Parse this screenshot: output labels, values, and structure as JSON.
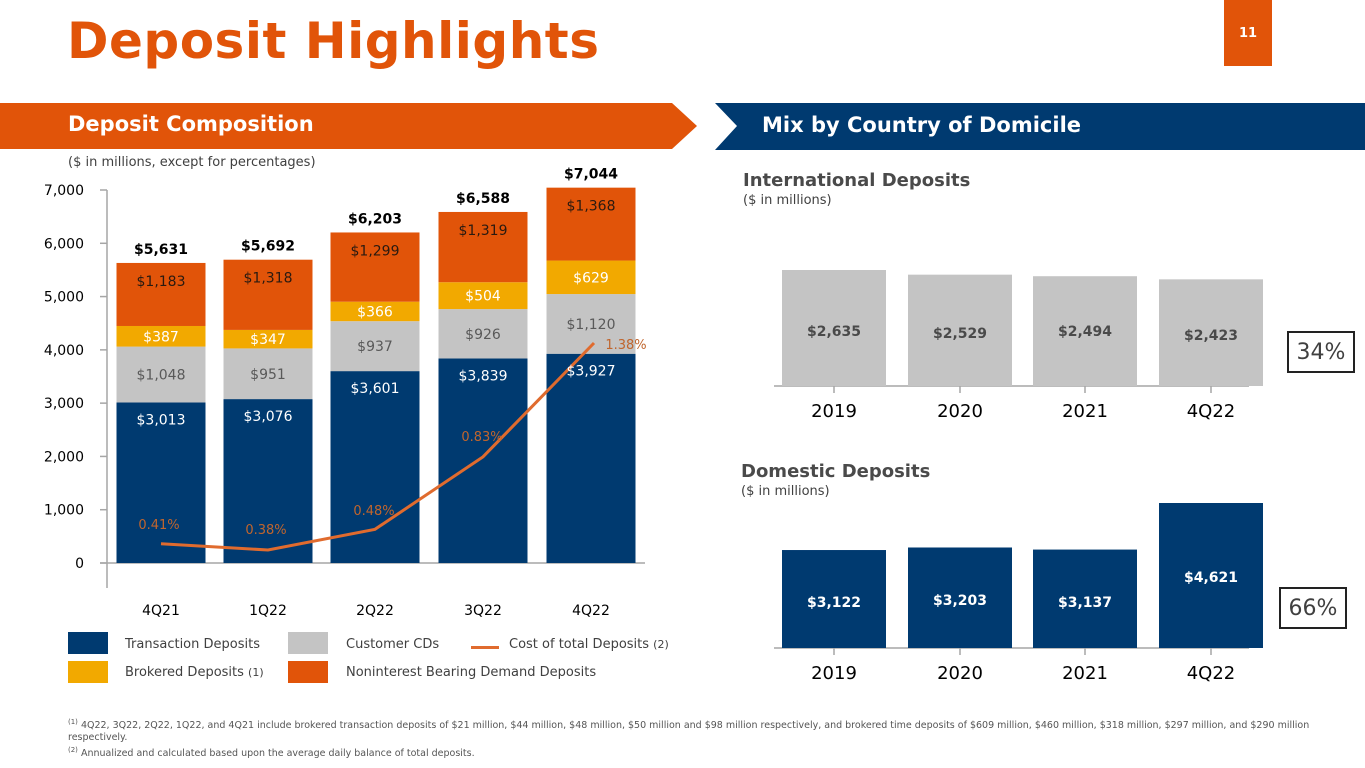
{
  "page": {
    "title": "Deposit Highlights",
    "page_number": "11"
  },
  "left_section": {
    "banner": "Deposit Composition",
    "note": "($ in millions, except for percentages)"
  },
  "right_section": {
    "banner": "Mix by Country of Domicile"
  },
  "legend": {
    "transaction": "Transaction Deposits",
    "customer_cds": "Customer CDs",
    "cost": "Cost of total Deposits",
    "cost_ref": "(2)",
    "brokered": "Brokered Deposits",
    "brokered_ref": "(1)",
    "noninterest": "Noninterest Bearing Demand Deposits"
  },
  "international": {
    "title": "International Deposits",
    "unit": "($ in millions)",
    "share": "34%"
  },
  "domestic": {
    "title": "Domestic Deposits",
    "unit": "($ in millions)",
    "share": "66%"
  },
  "colors": {
    "orange": "#e15409",
    "navy": "#003a70",
    "gray": "#c4c4c4",
    "gold": "#f2a900",
    "line": "#e06b2e"
  },
  "footnotes": {
    "note1_ref": "(1)",
    "note1": " 4Q22, 3Q22, 2Q22, 1Q22, and 4Q21 include brokered transaction deposits of $21 million, $44 million, $48 million, $50 million and $98 million respectively, and brokered time deposits of $609 million,  $460 million, $318 million, $297 million, and $290 million respectively.",
    "note2_ref": "(2)",
    "note2": " Annualized and calculated based upon the average daily balance of total deposits."
  },
  "chart_data": [
    {
      "type": "bar",
      "stacked": true,
      "title": "Deposit Composition",
      "subtitle": "($ in millions, except for percentages)",
      "categories": [
        "4Q21",
        "1Q22",
        "2Q22",
        "3Q22",
        "4Q22"
      ],
      "ylim": [
        0,
        7000
      ],
      "yticks": [
        0,
        1000,
        2000,
        3000,
        4000,
        5000,
        6000,
        7000
      ],
      "ytick_labels": [
        "0",
        "1,000",
        "2,000",
        "3,000",
        "4,000",
        "5,000",
        "6,000",
        "7,000"
      ],
      "series": [
        {
          "name": "Transaction Deposits",
          "color": "#003a70",
          "label_color": "#ffffff",
          "values": [
            3013,
            3076,
            3601,
            3839,
            3927
          ],
          "labels": [
            "$3,013",
            "$3,076",
            "$3,601",
            "$3,839",
            "$3,927"
          ]
        },
        {
          "name": "Customer CDs",
          "color": "#c4c4c4",
          "label_color": "#595959",
          "values": [
            1048,
            951,
            937,
            926,
            1120
          ],
          "labels": [
            "$1,048",
            "$951",
            "$937",
            "$926",
            "$1,120"
          ]
        },
        {
          "name": "Brokered Deposits",
          "color": "#f2a900",
          "label_color": "#ffffff",
          "values": [
            387,
            347,
            366,
            504,
            629
          ],
          "labels": [
            "$387",
            "$347",
            "$366",
            "$504",
            "$629"
          ]
        },
        {
          "name": "Noninterest Bearing Demand Deposits",
          "color": "#e15409",
          "label_color": "#2a1a10",
          "values": [
            1183,
            1318,
            1299,
            1319,
            1368
          ],
          "labels": [
            "$1,183",
            "$1,318",
            "$1,299",
            "$1,319",
            "$1,368"
          ]
        }
      ],
      "totals": [
        "$5,631",
        "$5,692",
        "$6,203",
        "$6,588",
        "$7,044"
      ],
      "line_series": {
        "name": "Cost of total Deposits",
        "color": "#e06b2e",
        "values": [
          0.41,
          0.38,
          0.48,
          0.83,
          1.38
        ],
        "labels": [
          "0.41%",
          "0.38%",
          "0.48%",
          "0.83%",
          "1.38%"
        ],
        "secondary_ylim": [
          0,
          2.0
        ]
      },
      "legend_position": "bottom"
    },
    {
      "type": "bar",
      "title": "International Deposits",
      "subtitle": "($ in millions)",
      "categories": [
        "2019",
        "2020",
        "2021",
        "4Q22"
      ],
      "values": [
        2635,
        2529,
        2494,
        2423
      ],
      "labels": [
        "$2,635",
        "$2,529",
        "$2,494",
        "$2,423"
      ],
      "color": "#c4c4c4",
      "annotation": "34%"
    },
    {
      "type": "bar",
      "title": "Domestic Deposits",
      "subtitle": "($ in millions)",
      "categories": [
        "2019",
        "2020",
        "2021",
        "4Q22"
      ],
      "values": [
        3122,
        3203,
        3137,
        4621
      ],
      "labels": [
        "$3,122",
        "$3,203",
        "$3,137",
        "$4,621"
      ],
      "color": "#003a70",
      "annotation": "66%"
    }
  ]
}
